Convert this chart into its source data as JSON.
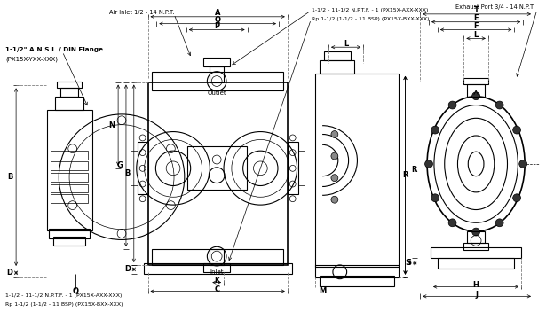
{
  "bg_color": "#ffffff",
  "line_color": "#000000",
  "text_color": "#000000",
  "annotation_flange": "1-1/2\" A.N.S.I. / DIN Flange",
  "annotation_flange2": "(PX15X-YXX-XXX)",
  "annotation_air": "Air Inlet 1/2 - 14 N.P.T.",
  "annotation_top1": "1-1/2 - 11-1/2 N.P.T.F. - 1 (PX15X-AXX-XXX)",
  "annotation_top2": "Rp 1-1/2 (1-1/2 - 11 BSP) (PX15X-BXX-XXX)",
  "annotation_exhaust": "Exhaust Port 3/4 - 14 N.P.T.",
  "annotation_bot1": "1-1/2 - 11-1/2 N.P.T.F. - 1 (PX15X-AXX-XXX)",
  "annotation_bot2": "Rp 1-1/2 (1-1/2 - 11 BSP) (PX15X-BXX-XXX)",
  "outlet": "Outlet",
  "inlet": "Inlet"
}
